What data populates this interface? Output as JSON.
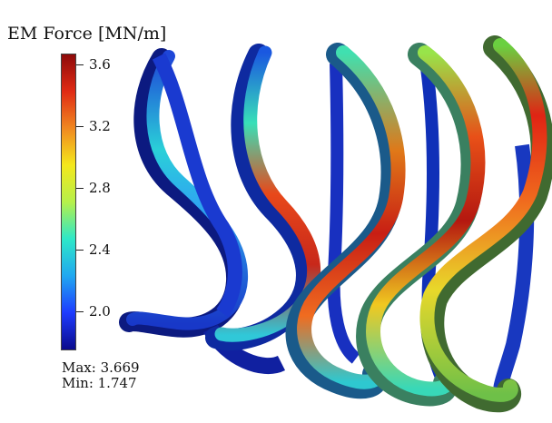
{
  "legend": {
    "title": "EM Force [MN/m]",
    "ticks": [
      {
        "label": "3.6",
        "value": 3.6
      },
      {
        "label": "3.2",
        "value": 3.2
      },
      {
        "label": "2.8",
        "value": 2.8
      },
      {
        "label": "2.4",
        "value": 2.4
      },
      {
        "label": "2.0",
        "value": 2.0
      }
    ],
    "range": [
      1.747,
      3.669
    ],
    "colormap": [
      "#0a0a8c",
      "#1e3cff",
      "#20a8f0",
      "#2ee8c8",
      "#b6f04a",
      "#f4e81c",
      "#f08820",
      "#e02a14",
      "#8e0a0a"
    ]
  },
  "stats": {
    "max": "Max: 3.669",
    "min": "Min: 1.747"
  },
  "coils": {
    "count": 5,
    "colors": {
      "low": "#1a34c8",
      "mid": "#2ed6c8",
      "high": "#d8281a",
      "peak": "#9a1410"
    }
  }
}
